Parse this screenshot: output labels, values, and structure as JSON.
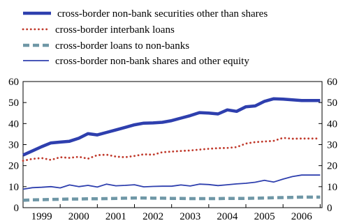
{
  "chart_data": {
    "type": "line",
    "title": "",
    "xlabel": "",
    "ylabel": "",
    "ylim": [
      0,
      60
    ],
    "yticks": [
      0,
      10,
      20,
      30,
      40,
      50,
      60
    ],
    "xlim": [
      1998.6,
      2006.65
    ],
    "x_ticks": [
      "1999",
      "2000",
      "2001",
      "2002",
      "2003",
      "2004",
      "2005",
      "2006"
    ],
    "grid": false,
    "legend_position": "top",
    "x": [
      1998.6,
      1998.85,
      1999.1,
      1999.35,
      1999.6,
      1999.85,
      2000.1,
      2000.35,
      2000.6,
      2000.85,
      2001.1,
      2001.35,
      2001.6,
      2001.85,
      2002.1,
      2002.35,
      2002.6,
      2002.85,
      2003.1,
      2003.35,
      2003.6,
      2003.85,
      2004.1,
      2004.35,
      2004.6,
      2004.85,
      2005.1,
      2005.35,
      2005.6,
      2005.85,
      2006.1,
      2006.35,
      2006.6
    ],
    "series": [
      {
        "name": "cross-border non-bank securities other than shares",
        "style": "thick",
        "color": "#2e3fae",
        "values": [
          25.0,
          27.0,
          29.0,
          30.8,
          31.2,
          31.6,
          33.0,
          35.2,
          34.6,
          35.8,
          37.0,
          38.2,
          39.4,
          40.2,
          40.3,
          40.6,
          41.4,
          42.6,
          43.8,
          45.2,
          45.0,
          44.6,
          46.5,
          45.8,
          48.0,
          48.4,
          50.6,
          51.8,
          51.6,
          51.3,
          51.0,
          51.0,
          51.0
        ]
      },
      {
        "name": "cross-border interbank loans",
        "style": "dotted",
        "color": "#c0392b",
        "values": [
          22.3,
          23.2,
          23.6,
          22.7,
          24.0,
          23.7,
          24.2,
          23.3,
          25.0,
          25.2,
          24.3,
          24.0,
          24.6,
          25.4,
          25.2,
          26.4,
          26.7,
          27.0,
          27.2,
          27.6,
          28.0,
          28.3,
          28.4,
          28.8,
          30.5,
          31.2,
          31.5,
          31.8,
          33.2,
          32.8,
          32.9,
          32.9,
          32.9
        ]
      },
      {
        "name": "cross-border loans to non-banks",
        "style": "dashed",
        "color": "#6f97a6",
        "values": [
          3.5,
          3.7,
          3.8,
          3.9,
          4.0,
          4.1,
          4.1,
          4.2,
          4.2,
          4.3,
          4.4,
          4.5,
          4.6,
          4.6,
          4.5,
          4.5,
          4.4,
          4.4,
          4.3,
          4.3,
          4.3,
          4.3,
          4.4,
          4.4,
          4.4,
          4.5,
          4.6,
          4.7,
          4.8,
          4.9,
          5.0,
          5.0,
          5.0
        ]
      },
      {
        "name": "cross-border non-bank shares and other equity",
        "style": "thin",
        "color": "#2e3fae",
        "values": [
          8.8,
          9.5,
          9.7,
          10.0,
          9.4,
          10.8,
          10.0,
          10.6,
          9.8,
          11.2,
          10.4,
          10.6,
          10.9,
          9.9,
          10.1,
          10.2,
          10.2,
          10.8,
          10.3,
          11.2,
          11.0,
          10.5,
          10.9,
          11.3,
          11.6,
          12.1,
          13.0,
          12.2,
          13.6,
          14.8,
          15.5,
          15.5,
          15.5
        ]
      }
    ]
  }
}
